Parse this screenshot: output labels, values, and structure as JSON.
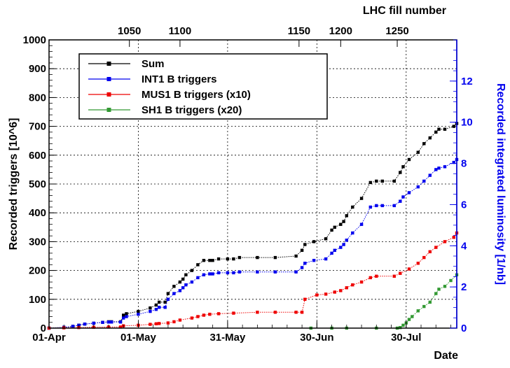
{
  "chart_data": {
    "type": "line",
    "xlabel": "Date",
    "ylabel": "Recorded triggers [10^6]",
    "y2label": "Recorded integrated luminosity [1/nb]",
    "x2label": "LHC fill number",
    "grid": true,
    "legend_position": "top-left",
    "ylim": [
      0,
      1000
    ],
    "y2lim": [
      0,
      14
    ],
    "y_ticks": [
      "0",
      "100",
      "200",
      "300",
      "400",
      "500",
      "600",
      "700",
      "800",
      "900",
      "1000"
    ],
    "y2_ticks": [
      "0",
      "2",
      "4",
      "6",
      "8",
      "10",
      "12"
    ],
    "x_ticks": [
      {
        "label": "01-Apr",
        "day": 0
      },
      {
        "label": "01-May",
        "day": 30
      },
      {
        "label": "31-May",
        "day": 60
      },
      {
        "label": "30-Jun",
        "day": 90
      },
      {
        "label": "30-Jul",
        "day": 120
      }
    ],
    "fill_ticks": [
      {
        "label": "1050",
        "day": 27
      },
      {
        "label": "1100",
        "day": 44
      },
      {
        "label": "1150",
        "day": 84
      },
      {
        "label": "1200",
        "day": 98
      },
      {
        "label": "1250",
        "day": 117
      }
    ],
    "xlim": [
      0,
      137
    ],
    "series": [
      {
        "name": "Sum",
        "color": "#000000",
        "x": [
          0,
          5,
          8,
          10,
          12,
          15,
          18,
          20,
          21,
          24,
          25,
          26,
          30,
          34,
          36,
          37,
          39,
          40,
          42,
          44,
          45,
          46,
          48,
          50,
          52,
          54,
          55,
          57,
          60,
          62,
          64,
          70,
          76,
          83,
          85,
          86,
          89,
          93,
          95,
          96,
          98,
          99,
          100,
          102,
          105,
          108,
          110,
          112,
          116,
          118,
          119,
          121,
          124,
          126,
          128,
          130,
          131,
          133,
          136,
          137
        ],
        "values": [
          0,
          3,
          6,
          10,
          14,
          17,
          20,
          22,
          22,
          22,
          45,
          50,
          58,
          70,
          80,
          90,
          90,
          120,
          145,
          160,
          170,
          185,
          200,
          220,
          235,
          235,
          235,
          240,
          240,
          240,
          245,
          245,
          245,
          250,
          270,
          290,
          300,
          310,
          340,
          350,
          360,
          370,
          390,
          420,
          450,
          505,
          510,
          510,
          510,
          540,
          560,
          585,
          610,
          640,
          660,
          680,
          690,
          690,
          700,
          710
        ]
      },
      {
        "name": "INT1 B triggers",
        "color": "#0000ee",
        "x": [
          0,
          5,
          8,
          10,
          12,
          15,
          18,
          20,
          21,
          24,
          25,
          26,
          30,
          34,
          36,
          37,
          39,
          40,
          42,
          44,
          45,
          46,
          48,
          50,
          52,
          54,
          55,
          57,
          60,
          62,
          64,
          70,
          76,
          83,
          85,
          86,
          89,
          93,
          95,
          96,
          98,
          99,
          100,
          102,
          105,
          108,
          110,
          112,
          116,
          118,
          119,
          121,
          124,
          126,
          128,
          130,
          131,
          133,
          136,
          137
        ],
        "values": [
          0,
          3,
          6,
          10,
          14,
          17,
          20,
          21,
          21,
          21,
          35,
          40,
          48,
          58,
          65,
          72,
          72,
          100,
          120,
          130,
          140,
          150,
          160,
          175,
          185,
          188,
          188,
          192,
          192,
          192,
          195,
          195,
          195,
          195,
          210,
          225,
          235,
          240,
          260,
          270,
          280,
          290,
          305,
          330,
          360,
          420,
          425,
          425,
          425,
          440,
          455,
          470,
          490,
          510,
          530,
          550,
          555,
          560,
          575,
          585
        ]
      },
      {
        "name": "MUS1 B triggers (x10)",
        "color": "#ee0000",
        "x": [
          0,
          5,
          10,
          15,
          20,
          24,
          25,
          30,
          34,
          36,
          37,
          40,
          42,
          44,
          48,
          50,
          52,
          54,
          57,
          62,
          70,
          76,
          83,
          85,
          86,
          90,
          93,
          96,
          98,
          100,
          102,
          105,
          108,
          110,
          116,
          118,
          121,
          124,
          126,
          128,
          130,
          133,
          136,
          137
        ],
        "values": [
          0,
          1,
          2,
          3,
          4,
          4,
          8,
          10,
          13,
          15,
          16,
          18,
          22,
          28,
          35,
          40,
          45,
          48,
          50,
          52,
          55,
          55,
          55,
          55,
          100,
          115,
          118,
          125,
          130,
          140,
          150,
          160,
          175,
          180,
          180,
          190,
          205,
          225,
          245,
          265,
          280,
          300,
          315,
          330
        ]
      },
      {
        "name": "SH1 B triggers (x20)",
        "color": "#339933",
        "x": [
          88,
          95,
          100,
          110,
          117,
          118,
          119,
          120,
          121,
          122,
          124,
          126,
          128,
          130,
          131,
          133,
          135,
          137
        ],
        "values": [
          0,
          0,
          0,
          0,
          0,
          2,
          10,
          18,
          30,
          40,
          60,
          75,
          90,
          120,
          135,
          145,
          165,
          185
        ]
      }
    ]
  }
}
